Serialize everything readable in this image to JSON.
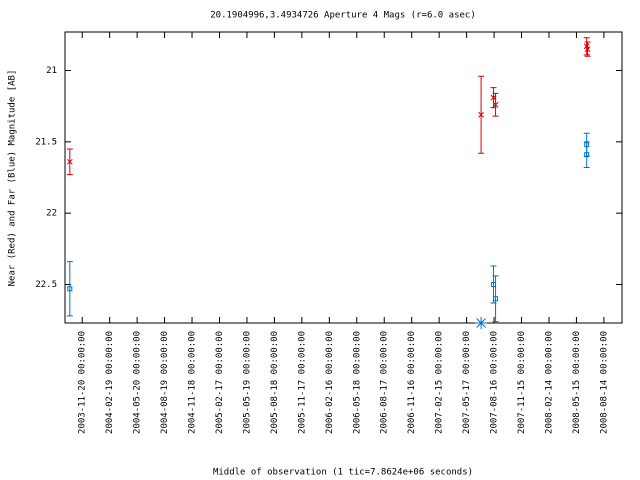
{
  "chart_data": {
    "type": "errorbar",
    "title": "20.1904996,3.4934726   Aperture 4 Mags (r=6.0 asec)",
    "x_label": "Middle of observation (1 tic=7.8624e+06 seconds)",
    "y_label": "Near (Red) and Far (Blue) Magnitude [AB]",
    "xlim": [
      "2003-09-24",
      "2008-10-13"
    ],
    "xticks": [
      "2003-11-20 00:00:00",
      "2004-02-19 00:00:00",
      "2004-05-20 00:00:00",
      "2004-08-19 00:00:00",
      "2004-11-18 00:00:00",
      "2005-02-17 00:00:00",
      "2005-05-19 00:00:00",
      "2005-08-18 00:00:00",
      "2005-11-17 00:00:00",
      "2006-02-16 00:00:00",
      "2006-05-18 00:00:00",
      "2006-08-17 00:00:00",
      "2006-11-16 00:00:00",
      "2007-02-15 00:00:00",
      "2007-05-17 00:00:00",
      "2007-08-16 00:00:00",
      "2007-11-15 00:00:00",
      "2008-02-14 00:00:00",
      "2008-05-15 00:00:00",
      "2008-08-14 00:00:00"
    ],
    "ylim": [
      22.77,
      20.73
    ],
    "yticks": [
      21,
      21.5,
      22,
      22.5
    ],
    "series": [
      {
        "color": "#d40000",
        "marker": "cross",
        "x": [
          "2003-10-10",
          "2007-07-04",
          "2007-08-14",
          "2007-08-21",
          "2008-06-18",
          "2008-06-21"
        ],
        "values": [
          21.64,
          21.31,
          21.19,
          21.24,
          20.83,
          20.85
        ],
        "errors": [
          0.09,
          0.27,
          0.07,
          0.08,
          0.06,
          0.05
        ]
      },
      {
        "color": "#0073c8",
        "marker": "square",
        "x": [
          "2003-10-10",
          "2007-08-14",
          "2007-08-21",
          "2008-06-18",
          "2008-06-18"
        ],
        "values": [
          22.53,
          22.5,
          22.6,
          21.52,
          21.59
        ],
        "errors": [
          0.19,
          0.13,
          0.16,
          0.08,
          0.09
        ]
      },
      {
        "color": "#0073c8",
        "marker": "star",
        "x": [
          "2007-07-04"
        ],
        "values": [
          22.77
        ]
      }
    ]
  }
}
